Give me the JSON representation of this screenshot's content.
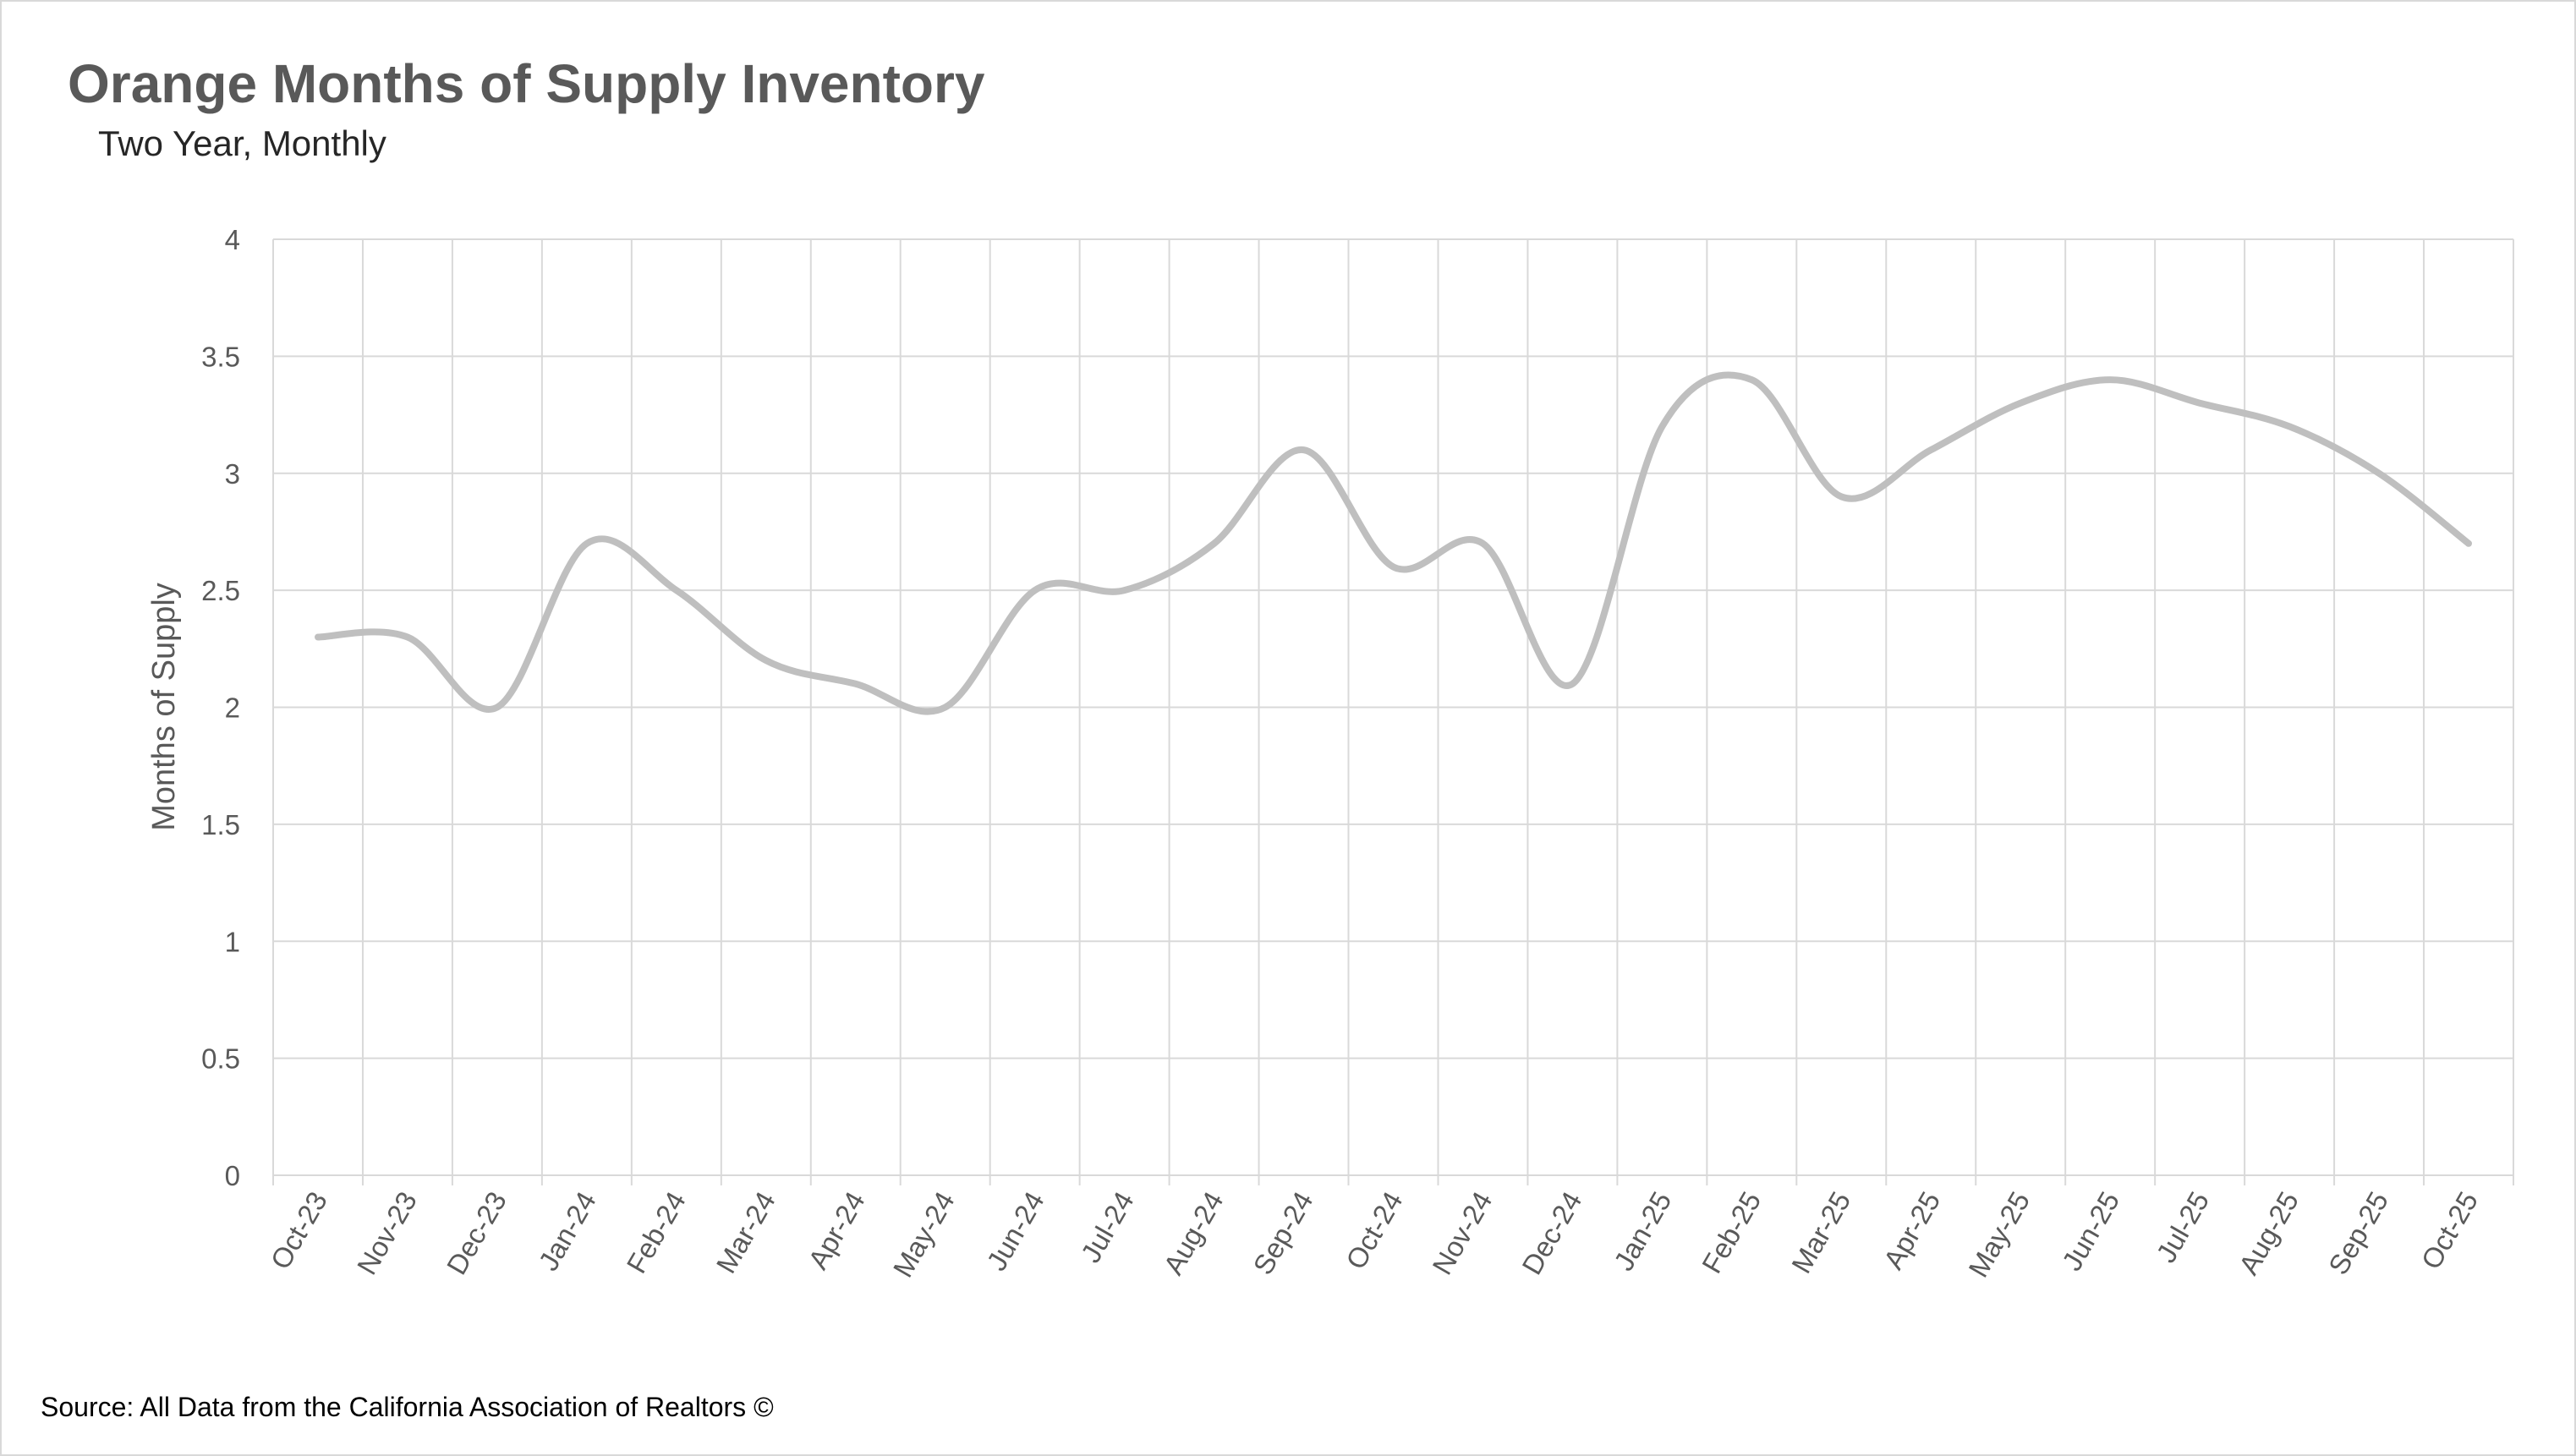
{
  "title": "Orange Months of Supply Inventory",
  "subtitle": "Two Year, Monthly",
  "source": "Source: All Data from the California Association of Realtors ©",
  "chart_data": {
    "type": "line",
    "title": "Orange Months of Supply Inventory",
    "subtitle": "Two Year, Monthly",
    "xlabel": "",
    "ylabel": "Months of Supply",
    "ylim": [
      0,
      4
    ],
    "yticks": [
      "0",
      "0.5",
      "1",
      "1.5",
      "2",
      "2.5",
      "3",
      "3.5",
      "4"
    ],
    "grid": true,
    "legend": "none",
    "smooth": true,
    "line_color": "#bfbfbf",
    "categories": [
      "Oct-23",
      "Nov-23",
      "Dec-23",
      "Jan-24",
      "Feb-24",
      "Mar-24",
      "Apr-24",
      "May-24",
      "Jun-24",
      "Jul-24",
      "Aug-24",
      "Sep-24",
      "Oct-24",
      "Nov-24",
      "Dec-24",
      "Jan-25",
      "Feb-25",
      "Mar-25",
      "Apr-25",
      "May-25",
      "Jun-25",
      "Jul-25",
      "Aug-25",
      "Sep-25",
      "Oct-25"
    ],
    "series": [
      {
        "values": [
          2.3,
          2.3,
          2.0,
          2.7,
          2.5,
          2.2,
          2.1,
          2.0,
          2.5,
          2.5,
          2.7,
          3.1,
          2.6,
          2.7,
          2.1,
          3.2,
          3.4,
          2.9,
          3.1,
          3.3,
          3.4,
          3.3,
          3.2,
          3.0,
          2.7
        ]
      }
    ]
  }
}
